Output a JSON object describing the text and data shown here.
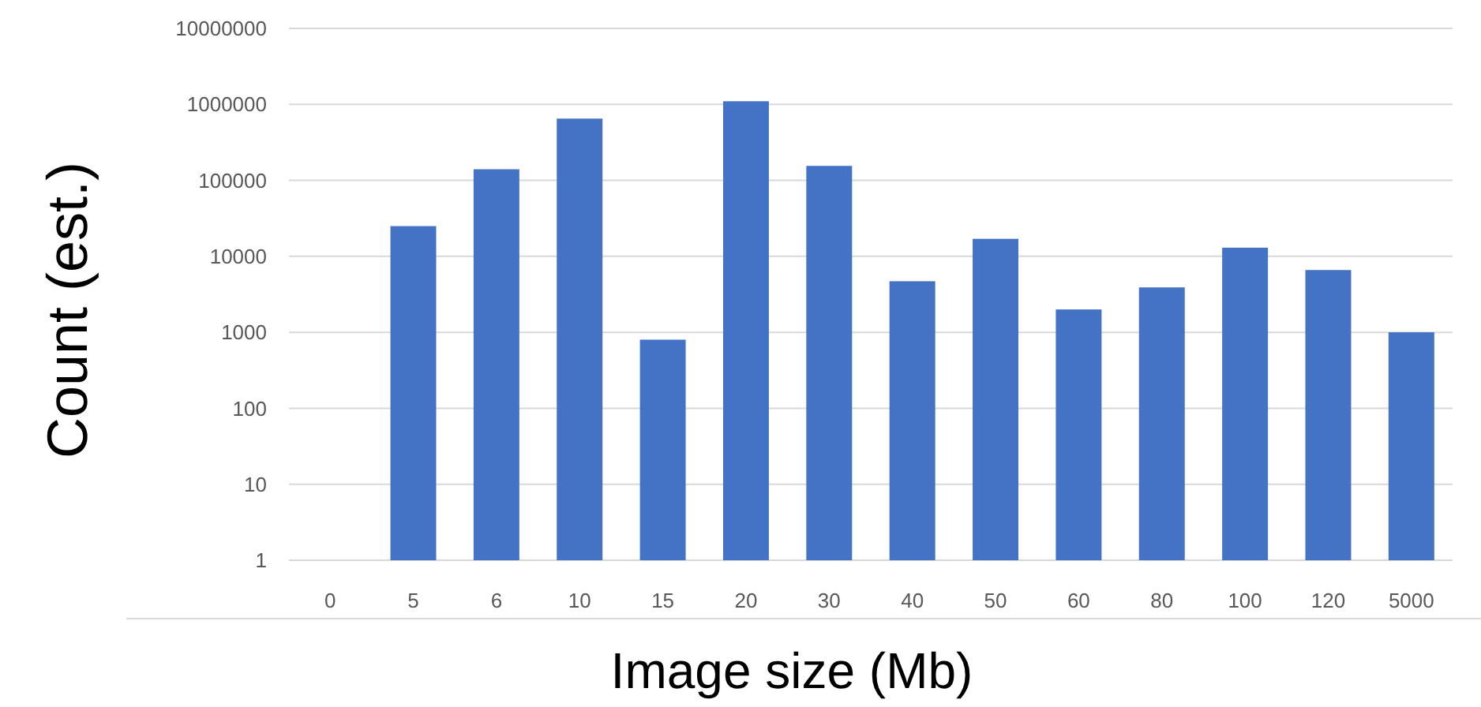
{
  "chart_data": {
    "type": "bar",
    "xlabel": "Image size (Mb)",
    "ylabel": "Count (est.)",
    "categories": [
      "0",
      "5",
      "6",
      "10",
      "15",
      "20",
      "30",
      "40",
      "50",
      "60",
      "80",
      "100",
      "120",
      "5000"
    ],
    "values": [
      null,
      25000,
      140000,
      650000,
      800,
      1100000,
      155000,
      4700,
      17000,
      2000,
      3900,
      13000,
      6600,
      1000
    ],
    "color": "#4472c4",
    "log": true,
    "ylim": [
      1,
      10000000
    ],
    "yticks": [
      1,
      10,
      100,
      1000,
      10000,
      100000,
      1000000,
      10000000
    ],
    "grid": "y"
  }
}
